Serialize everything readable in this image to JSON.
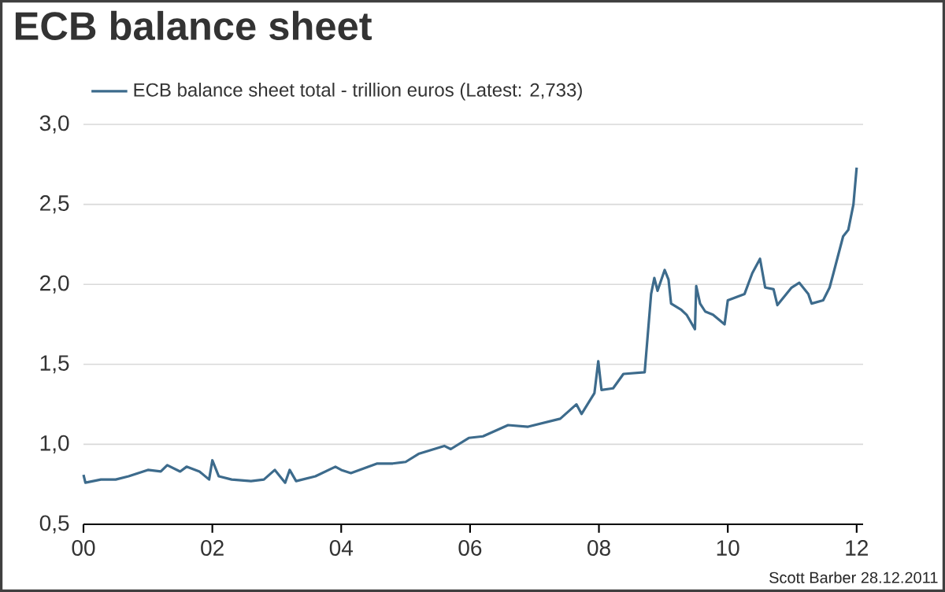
{
  "chart_data": {
    "type": "line",
    "title": "ECB balance sheet",
    "x": [
      0,
      0.03,
      0.27,
      0.5,
      0.7,
      1.0,
      1.2,
      1.3,
      1.5,
      1.6,
      1.8,
      1.95,
      2.0,
      2.1,
      2.3,
      2.6,
      2.8,
      2.97,
      3.13,
      3.2,
      3.3,
      3.6,
      3.91,
      4.0,
      4.15,
      4.56,
      4.8,
      5.0,
      5.2,
      5.6,
      5.7,
      5.98,
      6.2,
      6.59,
      6.9,
      7.4,
      7.65,
      7.73,
      7.93,
      7.99,
      8.04,
      8.22,
      8.38,
      8.71,
      8.81,
      8.86,
      8.91,
      9.02,
      9.08,
      9.12,
      9.28,
      9.36,
      9.49,
      9.51,
      9.57,
      9.65,
      9.77,
      9.95,
      10.0,
      10.26,
      10.38,
      10.5,
      10.58,
      10.71,
      10.77,
      10.99,
      11.11,
      11.25,
      11.3,
      11.48,
      11.58,
      11.64,
      11.79,
      11.87,
      11.95,
      12.0
    ],
    "series": [
      {
        "name": "ECB balance sheet total - trillion euros  (Latest: 2,733)",
        "color": "#3d6b8c",
        "values": [
          0.81,
          0.76,
          0.78,
          0.78,
          0.8,
          0.84,
          0.83,
          0.87,
          0.83,
          0.86,
          0.83,
          0.78,
          0.9,
          0.8,
          0.78,
          0.77,
          0.78,
          0.84,
          0.76,
          0.84,
          0.77,
          0.8,
          0.86,
          0.84,
          0.82,
          0.88,
          0.88,
          0.89,
          0.94,
          0.99,
          0.97,
          1.04,
          1.05,
          1.12,
          1.11,
          1.16,
          1.25,
          1.19,
          1.32,
          1.52,
          1.34,
          1.35,
          1.44,
          1.45,
          1.94,
          2.04,
          1.96,
          2.09,
          2.03,
          1.88,
          1.84,
          1.81,
          1.72,
          1.99,
          1.88,
          1.83,
          1.81,
          1.75,
          1.9,
          1.94,
          2.07,
          2.16,
          1.98,
          1.97,
          1.87,
          1.98,
          2.01,
          1.94,
          1.88,
          1.9,
          1.98,
          2.07,
          2.3,
          2.34,
          2.5,
          2.73
        ]
      }
    ],
    "xlim": [
      0,
      12.1
    ],
    "ylim": [
      0.5,
      3.0
    ],
    "xticks": [
      {
        "value": 0,
        "label": "00"
      },
      {
        "value": 2,
        "label": "02"
      },
      {
        "value": 4,
        "label": "04"
      },
      {
        "value": 6,
        "label": "06"
      },
      {
        "value": 8,
        "label": "08"
      },
      {
        "value": 10,
        "label": "10"
      },
      {
        "value": 12,
        "label": "12"
      }
    ],
    "yticks": [
      {
        "value": 0.5,
        "label": "0,5"
      },
      {
        "value": 1.0,
        "label": "1,0"
      },
      {
        "value": 1.5,
        "label": "1,5"
      },
      {
        "value": 2.0,
        "label": "2,0"
      },
      {
        "value": 2.5,
        "label": "2,5"
      },
      {
        "value": 3.0,
        "label": "3,0"
      }
    ],
    "grid": "y",
    "legend": "top left",
    "line_style": "solid",
    "marker": "none",
    "annotations": [
      "Scott Barber 28.12.2011"
    ]
  }
}
